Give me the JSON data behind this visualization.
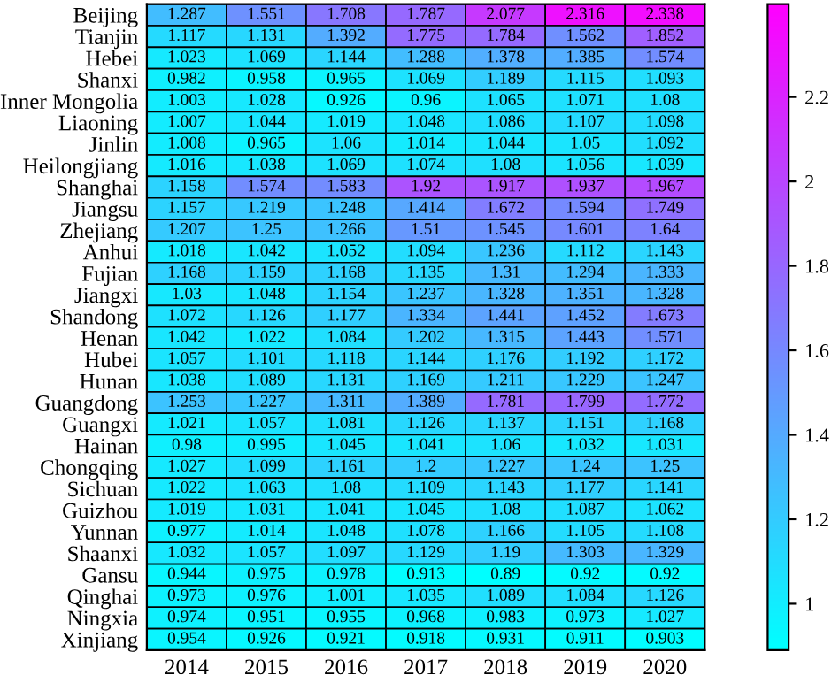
{
  "chart_data": {
    "type": "heatmap",
    "categories": [
      "2014",
      "2015",
      "2016",
      "2017",
      "2018",
      "2019",
      "2020"
    ],
    "y_categories": [
      "Beijing",
      "Tianjin",
      "Hebei",
      "Shanxi",
      "Inner Mongolia",
      "Liaoning",
      "Jinlin",
      "Heilongjiang",
      "Shanghai",
      "Jiangsu",
      "Zhejiang",
      "Anhui",
      "Fujian",
      "Jiangxi",
      "Shandong",
      "Henan",
      "Hubei",
      "Hunan",
      "Guangdong",
      "Guangxi",
      "Hainan",
      "Chongqing",
      "Sichuan",
      "Guizhou",
      "Yunnan",
      "Shaanxi",
      "Gansu",
      "Qinghai",
      "Ningxia",
      "Xinjiang"
    ],
    "cells": [
      [
        1.287,
        1.551,
        1.708,
        1.787,
        2.077,
        2.316,
        2.338
      ],
      [
        1.117,
        1.131,
        1.392,
        1.775,
        1.784,
        1.562,
        1.852
      ],
      [
        1.023,
        1.069,
        1.144,
        1.288,
        1.378,
        1.385,
        1.574
      ],
      [
        0.982,
        0.958,
        0.965,
        1.069,
        1.189,
        1.115,
        1.093
      ],
      [
        1.003,
        1.028,
        0.926,
        0.96,
        1.065,
        1.071,
        1.08
      ],
      [
        1.007,
        1.044,
        1.019,
        1.048,
        1.086,
        1.107,
        1.098
      ],
      [
        1.008,
        0.965,
        1.06,
        1.014,
        1.044,
        1.05,
        1.092
      ],
      [
        1.016,
        1.038,
        1.069,
        1.074,
        1.08,
        1.056,
        1.039
      ],
      [
        1.158,
        1.574,
        1.583,
        1.92,
        1.917,
        1.937,
        1.967
      ],
      [
        1.157,
        1.219,
        1.248,
        1.414,
        1.672,
        1.594,
        1.749
      ],
      [
        1.207,
        1.25,
        1.266,
        1.51,
        1.545,
        1.601,
        1.64
      ],
      [
        1.018,
        1.042,
        1.052,
        1.094,
        1.236,
        1.112,
        1.143
      ],
      [
        1.168,
        1.159,
        1.168,
        1.135,
        1.31,
        1.294,
        1.333
      ],
      [
        1.03,
        1.048,
        1.154,
        1.237,
        1.328,
        1.351,
        1.328
      ],
      [
        1.072,
        1.126,
        1.177,
        1.334,
        1.441,
        1.452,
        1.673
      ],
      [
        1.042,
        1.022,
        1.084,
        1.202,
        1.315,
        1.443,
        1.571
      ],
      [
        1.057,
        1.101,
        1.118,
        1.144,
        1.176,
        1.192,
        1.172
      ],
      [
        1.038,
        1.089,
        1.131,
        1.169,
        1.211,
        1.229,
        1.247
      ],
      [
        1.253,
        1.227,
        1.311,
        1.389,
        1.781,
        1.799,
        1.772
      ],
      [
        1.021,
        1.057,
        1.081,
        1.126,
        1.137,
        1.151,
        1.168
      ],
      [
        0.98,
        0.995,
        1.045,
        1.041,
        1.06,
        1.032,
        1.031
      ],
      [
        1.027,
        1.099,
        1.161,
        1.2,
        1.227,
        1.24,
        1.25
      ],
      [
        1.022,
        1.063,
        1.08,
        1.109,
        1.143,
        1.177,
        1.141
      ],
      [
        1.019,
        1.031,
        1.041,
        1.045,
        1.08,
        1.087,
        1.062
      ],
      [
        0.977,
        1.014,
        1.048,
        1.078,
        1.166,
        1.105,
        1.108
      ],
      [
        1.032,
        1.057,
        1.097,
        1.129,
        1.19,
        1.303,
        1.329
      ],
      [
        0.944,
        0.975,
        0.978,
        0.913,
        0.89,
        0.92,
        0.92
      ],
      [
        0.973,
        0.976,
        1.001,
        1.035,
        1.089,
        1.084,
        1.126
      ],
      [
        0.974,
        0.951,
        0.955,
        0.968,
        0.983,
        0.973,
        1.027
      ],
      [
        0.954,
        0.926,
        0.921,
        0.918,
        0.931,
        0.911,
        0.903
      ]
    ],
    "data_labels": true,
    "clim": [
      0.89,
      2.42
    ],
    "cticks": [
      {
        "value": 1,
        "label": "1"
      },
      1.2,
      1.4,
      1.6,
      1.8,
      {
        "value": 2,
        "label": "2"
      },
      2.2
    ]
  }
}
